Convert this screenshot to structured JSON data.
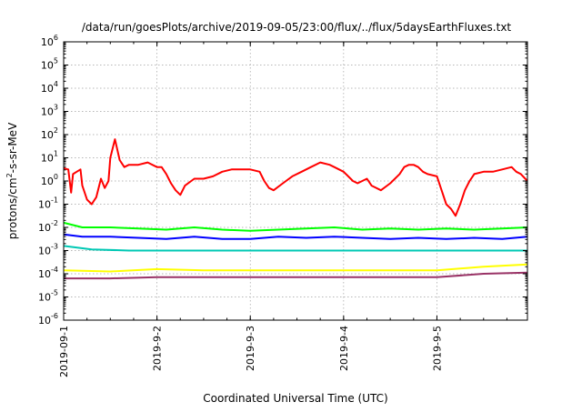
{
  "chart_data": {
    "type": "line",
    "title": "/data/run/goesPlots/archive/2019-09-05/23:00/flux/../flux/5daysEarthFluxes.txt",
    "xlabel": "Coordinated Universal Time (UTC)",
    "ylabel_main": "protons/cm",
    "ylabel_sup": "2",
    "ylabel_rest": "-s-sr-MeV",
    "y_scale": "log",
    "ylim_exp": [
      -6,
      6
    ],
    "xlim_days": [
      0,
      4.97
    ],
    "grid": true,
    "y_ticks": [
      {
        "base": "10",
        "exp": "-6"
      },
      {
        "base": "10",
        "exp": "-5"
      },
      {
        "base": "10",
        "exp": "-4"
      },
      {
        "base": "10",
        "exp": "-3"
      },
      {
        "base": "10",
        "exp": "-2"
      },
      {
        "base": "10",
        "exp": "-1"
      },
      {
        "base": "10",
        "exp": "0"
      },
      {
        "base": "10",
        "exp": "1"
      },
      {
        "base": "10",
        "exp": "2"
      },
      {
        "base": "10",
        "exp": "3"
      },
      {
        "base": "10",
        "exp": "4"
      },
      {
        "base": "10",
        "exp": "5"
      },
      {
        "base": "10",
        "exp": "6"
      }
    ],
    "x_ticks": [
      "2019-09-1",
      "2019-9-2",
      "2019-9-3",
      "2019-9-4",
      "2019-9-5"
    ],
    "series": [
      {
        "color": "#ff0000",
        "points": [
          [
            0,
            0.55
          ],
          [
            0.05,
            0.5
          ],
          [
            0.08,
            -0.5
          ],
          [
            0.1,
            0.3
          ],
          [
            0.14,
            0.4
          ],
          [
            0.18,
            0.5
          ],
          [
            0.2,
            -0.2
          ],
          [
            0.25,
            -0.8
          ],
          [
            0.3,
            -1.0
          ],
          [
            0.35,
            -0.7
          ],
          [
            0.4,
            0.1
          ],
          [
            0.44,
            -0.3
          ],
          [
            0.48,
            0.0
          ],
          [
            0.5,
            1.0
          ],
          [
            0.55,
            1.8
          ],
          [
            0.6,
            0.9
          ],
          [
            0.65,
            0.6
          ],
          [
            0.7,
            0.7
          ],
          [
            0.8,
            0.7
          ],
          [
            0.9,
            0.8
          ],
          [
            1.0,
            0.6
          ],
          [
            1.05,
            0.6
          ],
          [
            1.1,
            0.3
          ],
          [
            1.15,
            -0.1
          ],
          [
            1.2,
            -0.4
          ],
          [
            1.25,
            -0.6
          ],
          [
            1.3,
            -0.2
          ],
          [
            1.4,
            0.1
          ],
          [
            1.5,
            0.1
          ],
          [
            1.6,
            0.2
          ],
          [
            1.7,
            0.4
          ],
          [
            1.8,
            0.5
          ],
          [
            1.9,
            0.5
          ],
          [
            2.0,
            0.5
          ],
          [
            2.1,
            0.4
          ],
          [
            2.15,
            0.0
          ],
          [
            2.2,
            -0.3
          ],
          [
            2.25,
            -0.4
          ],
          [
            2.35,
            -0.1
          ],
          [
            2.45,
            0.2
          ],
          [
            2.55,
            0.4
          ],
          [
            2.65,
            0.6
          ],
          [
            2.75,
            0.8
          ],
          [
            2.85,
            0.7
          ],
          [
            2.9,
            0.6
          ],
          [
            3.0,
            0.4
          ],
          [
            3.1,
            0.0
          ],
          [
            3.15,
            -0.1
          ],
          [
            3.25,
            0.1
          ],
          [
            3.3,
            -0.2
          ],
          [
            3.4,
            -0.4
          ],
          [
            3.5,
            -0.1
          ],
          [
            3.6,
            0.3
          ],
          [
            3.65,
            0.6
          ],
          [
            3.7,
            0.7
          ],
          [
            3.75,
            0.7
          ],
          [
            3.8,
            0.6
          ],
          [
            3.85,
            0.4
          ],
          [
            3.9,
            0.3
          ],
          [
            4.0,
            0.2
          ],
          [
            4.05,
            -0.4
          ],
          [
            4.1,
            -1.0
          ],
          [
            4.15,
            -1.2
          ],
          [
            4.2,
            -1.5
          ],
          [
            4.25,
            -1.0
          ],
          [
            4.3,
            -0.4
          ],
          [
            4.35,
            0.0
          ],
          [
            4.4,
            0.3
          ],
          [
            4.5,
            0.4
          ],
          [
            4.6,
            0.4
          ],
          [
            4.7,
            0.5
          ],
          [
            4.8,
            0.6
          ],
          [
            4.85,
            0.4
          ],
          [
            4.9,
            0.3
          ],
          [
            4.97,
            0.0
          ]
        ]
      },
      {
        "color": "#00ff00",
        "points": [
          [
            0,
            -1.8
          ],
          [
            0.2,
            -2.0
          ],
          [
            0.5,
            -2.0
          ],
          [
            0.8,
            -2.05
          ],
          [
            1.1,
            -2.1
          ],
          [
            1.4,
            -2.0
          ],
          [
            1.7,
            -2.1
          ],
          [
            2.0,
            -2.15
          ],
          [
            2.3,
            -2.1
          ],
          [
            2.6,
            -2.05
          ],
          [
            2.9,
            -2.0
          ],
          [
            3.2,
            -2.1
          ],
          [
            3.5,
            -2.05
          ],
          [
            3.8,
            -2.1
          ],
          [
            4.1,
            -2.05
          ],
          [
            4.4,
            -2.1
          ],
          [
            4.7,
            -2.05
          ],
          [
            4.97,
            -2.0
          ]
        ]
      },
      {
        "color": "#0000ff",
        "points": [
          [
            0,
            -2.3
          ],
          [
            0.2,
            -2.4
          ],
          [
            0.5,
            -2.4
          ],
          [
            0.8,
            -2.45
          ],
          [
            1.1,
            -2.5
          ],
          [
            1.4,
            -2.4
          ],
          [
            1.7,
            -2.5
          ],
          [
            2.0,
            -2.5
          ],
          [
            2.3,
            -2.4
          ],
          [
            2.6,
            -2.45
          ],
          [
            2.9,
            -2.4
          ],
          [
            3.2,
            -2.45
          ],
          [
            3.5,
            -2.5
          ],
          [
            3.8,
            -2.45
          ],
          [
            4.1,
            -2.5
          ],
          [
            4.4,
            -2.45
          ],
          [
            4.7,
            -2.5
          ],
          [
            4.97,
            -2.4
          ]
        ]
      },
      {
        "color": "#00c8b4",
        "points": [
          [
            0,
            -2.8
          ],
          [
            0.3,
            -2.95
          ],
          [
            0.7,
            -3.0
          ],
          [
            1.0,
            -3.0
          ],
          [
            1.3,
            -3.0
          ],
          [
            1.6,
            -3.0
          ],
          [
            2.0,
            -3.0
          ],
          [
            2.4,
            -3.0
          ],
          [
            2.8,
            -3.0
          ],
          [
            3.2,
            -3.0
          ],
          [
            3.6,
            -3.0
          ],
          [
            4.0,
            -3.0
          ],
          [
            4.4,
            -3.0
          ],
          [
            4.97,
            -3.0
          ]
        ]
      },
      {
        "color": "#ffff00",
        "points": [
          [
            0,
            -3.85
          ],
          [
            0.5,
            -3.9
          ],
          [
            1.0,
            -3.8
          ],
          [
            1.5,
            -3.85
          ],
          [
            2.0,
            -3.85
          ],
          [
            2.5,
            -3.85
          ],
          [
            3.0,
            -3.85
          ],
          [
            3.5,
            -3.85
          ],
          [
            4.0,
            -3.85
          ],
          [
            4.5,
            -3.7
          ],
          [
            4.97,
            -3.6
          ]
        ]
      },
      {
        "color": "#993366",
        "points": [
          [
            0,
            -4.2
          ],
          [
            0.5,
            -4.2
          ],
          [
            1.0,
            -4.15
          ],
          [
            1.5,
            -4.15
          ],
          [
            2.0,
            -4.15
          ],
          [
            2.5,
            -4.15
          ],
          [
            3.0,
            -4.15
          ],
          [
            3.5,
            -4.15
          ],
          [
            4.0,
            -4.15
          ],
          [
            4.5,
            -4.0
          ],
          [
            4.97,
            -3.95
          ]
        ]
      }
    ]
  }
}
